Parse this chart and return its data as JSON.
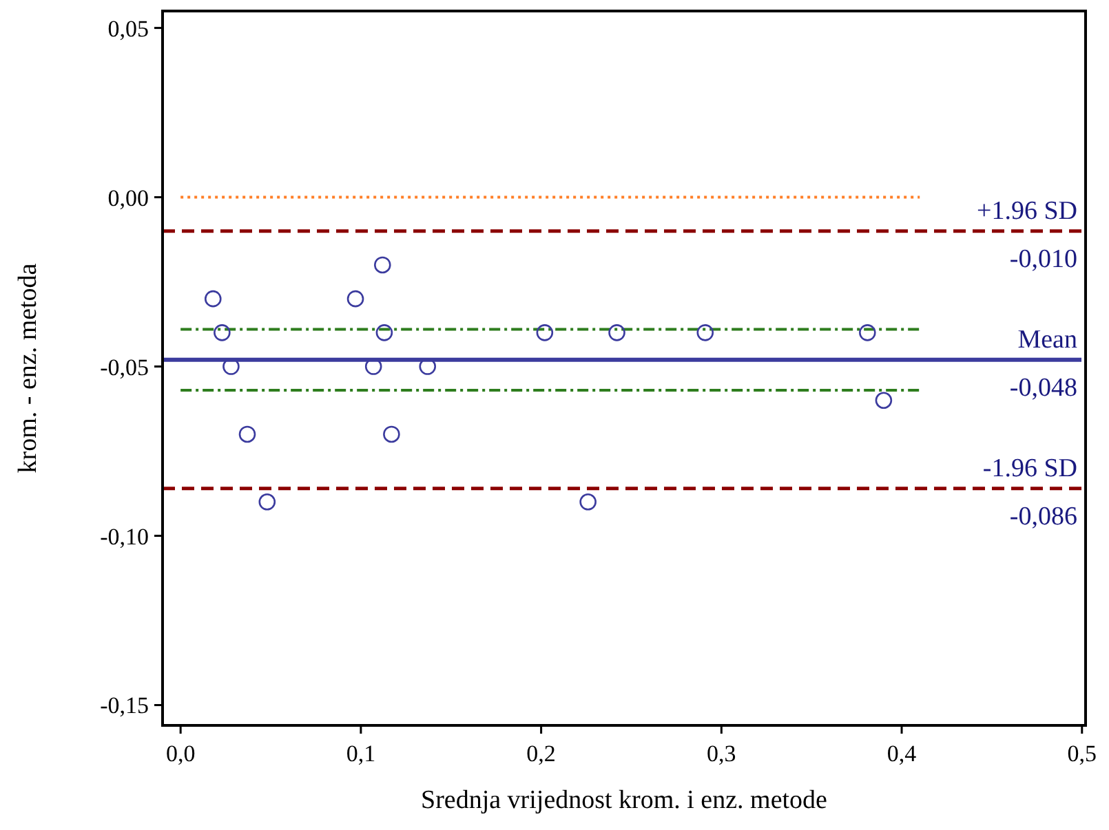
{
  "chart_data": {
    "type": "scatter",
    "xlabel": "Srednja vrijednost krom. i enz. metode",
    "ylabel": "krom. - enz. metoda",
    "xlim": [
      -0.01,
      0.502
    ],
    "ylim": [
      -0.156,
      0.055
    ],
    "xticks": [
      {
        "value": 0,
        "label": "0,0"
      },
      {
        "value": 0.1,
        "label": "0,1"
      },
      {
        "value": 0.2,
        "label": "0,2"
      },
      {
        "value": 0.3,
        "label": "0,3"
      },
      {
        "value": 0.4,
        "label": "0,4"
      },
      {
        "value": 0.5,
        "label": "0,5"
      }
    ],
    "yticks": [
      {
        "value": 0.05,
        "label": "0,05"
      },
      {
        "value": 0,
        "label": "0,00"
      },
      {
        "value": -0.05,
        "label": "-0,05"
      },
      {
        "value": -0.1,
        "label": "-0,10"
      },
      {
        "value": -0.15,
        "label": "-0,15"
      }
    ],
    "grid": false,
    "marker": "circle",
    "series": [
      {
        "type": "line",
        "color": "#ff7f27",
        "line_style": "dotted",
        "marker": "none",
        "x": [
          0,
          0.41
        ],
        "values": [
          0,
          0
        ]
      },
      {
        "type": "line",
        "color": "#2e7d1e",
        "line_style": "dashdot",
        "marker": "none",
        "x": [
          0,
          0.41
        ],
        "values": [
          -0.039,
          -0.039
        ]
      },
      {
        "type": "line",
        "color": "#2e7d1e",
        "line_style": "dashdot",
        "marker": "none",
        "x": [
          0,
          0.41
        ],
        "values": [
          -0.057,
          -0.057
        ]
      },
      {
        "color": "#3b3b9e",
        "x": [
          0.018,
          0.023,
          0.028,
          0.037,
          0.048,
          0.097,
          0.112,
          0.107,
          0.113,
          0.117,
          0.137,
          0.202,
          0.226,
          0.242,
          0.291,
          0.381,
          0.39
        ],
        "values": [
          -0.03,
          -0.04,
          -0.05,
          -0.07,
          -0.09,
          -0.03,
          -0.02,
          -0.05,
          -0.04,
          -0.07,
          -0.05,
          -0.04,
          -0.09,
          -0.04,
          -0.04,
          -0.04,
          -0.06
        ]
      }
    ],
    "ref_lines": [
      {
        "axis": "y",
        "value": -0.01,
        "label": "+1.96 SD",
        "color": "#8b0000",
        "line_style": "dashed"
      },
      {
        "axis": "y",
        "value": -0.048,
        "label": "Mean",
        "color": "#3b3b9e",
        "line_style": "solid"
      },
      {
        "axis": "y",
        "value": -0.086,
        "label": "-1.96 SD",
        "color": "#8b0000",
        "line_style": "dashed"
      }
    ],
    "annotations": [
      {
        "text": "-0,010",
        "y": -0.01
      },
      {
        "text": "-0,048",
        "y": -0.048
      },
      {
        "text": "-0,086",
        "y": -0.086
      }
    ]
  }
}
